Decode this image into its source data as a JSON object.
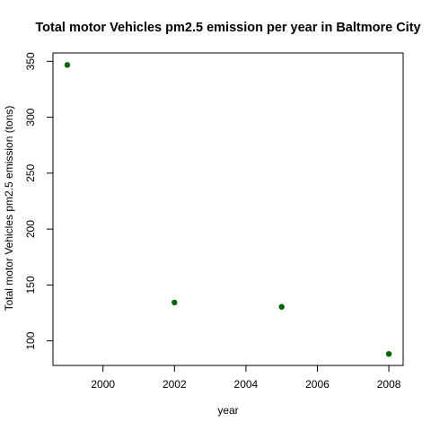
{
  "chart_data": {
    "type": "scatter",
    "title": "Total motor Vehicles pm2.5 emission per year in Baltmore City",
    "xlabel": "year",
    "ylabel": "Total motor Vehicles pm2.5 emission (tons)",
    "x": [
      1999,
      2002,
      2005,
      2008
    ],
    "y": [
      346.8,
      134.3,
      130.4,
      88.3
    ],
    "xlim": [
      1998.6,
      2008.4
    ],
    "ylim": [
      78.0,
      357.5
    ],
    "xticks": [
      2000,
      2002,
      2004,
      2006,
      2008
    ],
    "yticks": [
      100,
      150,
      200,
      250,
      300,
      350
    ],
    "point_color": "#006400",
    "grid": false,
    "legend": "none"
  }
}
